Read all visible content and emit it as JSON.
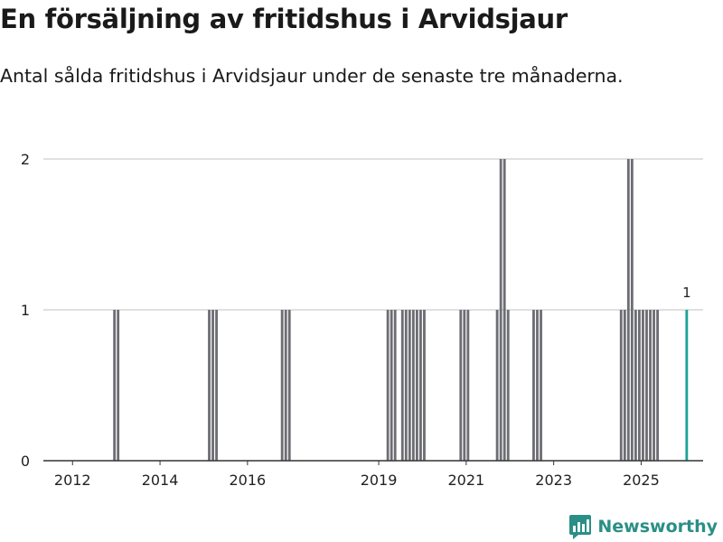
{
  "header": {
    "title": "En försäljning av fritidshus i Arvidsjaur",
    "subtitle": "Antal sålda fritidshus i Arvidsjaur under de senaste tre månaderna."
  },
  "brand": {
    "name": "Newsworthy"
  },
  "colors": {
    "bar": "#6d6d74",
    "highlight": "#1aa19a",
    "grid": "#d6d6d6",
    "axis": "#333333",
    "text": "#222222",
    "brand": "#2a8f86"
  },
  "chart_data": {
    "type": "bar",
    "title": "",
    "xlabel": "",
    "ylabel": "",
    "ylim": [
      0,
      2
    ],
    "yticks": [
      0,
      1,
      2
    ],
    "xlim": [
      "2011-05",
      "2026-06"
    ],
    "xticks": [
      "2012",
      "2014",
      "2016",
      "2019",
      "2021",
      "2023",
      "2025"
    ],
    "grid": true,
    "highlight_label": "1",
    "series": [
      {
        "x": [
          "2012-12",
          "2013-01",
          "2015-02",
          "2015-03",
          "2015-04",
          "2016-10",
          "2016-11",
          "2016-12",
          "2019-03",
          "2019-04",
          "2019-05",
          "2019-07",
          "2019-08",
          "2019-09",
          "2019-10",
          "2019-11",
          "2019-12",
          "2020-01",
          "2020-11",
          "2020-12",
          "2021-01",
          "2021-09",
          "2021-10",
          "2021-11",
          "2021-12",
          "2022-07",
          "2022-08",
          "2022-09",
          "2024-07",
          "2024-08",
          "2024-09",
          "2024-10",
          "2024-11",
          "2024-12",
          "2025-01",
          "2025-02",
          "2025-03",
          "2025-04",
          "2025-05",
          "2026-01"
        ],
        "values": [
          1,
          1,
          1,
          1,
          1,
          1,
          1,
          1,
          1,
          1,
          1,
          1,
          1,
          1,
          1,
          1,
          1,
          1,
          1,
          1,
          1,
          1,
          2,
          2,
          1,
          1,
          1,
          1,
          1,
          1,
          2,
          2,
          1,
          1,
          1,
          1,
          1,
          1,
          1,
          1
        ]
      }
    ]
  }
}
